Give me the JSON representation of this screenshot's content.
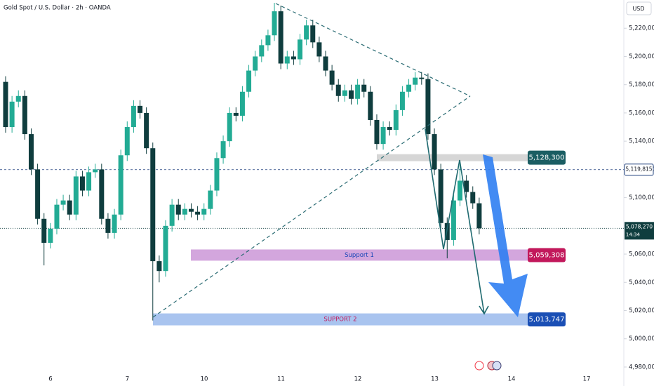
{
  "header": {
    "title": "Gold Spot / U.S. Dollar · 2h · OANDA",
    "currency": "USD"
  },
  "chart_data": {
    "type": "candlestick",
    "up_color": "#22ab94",
    "down_color": "#0f3d3e",
    "open": [
      5182000,
      5150000,
      5168000,
      5172000,
      5145000,
      5120000,
      5085000,
      5068000,
      5078000,
      5095000,
      5098000,
      5088000,
      5115000,
      5105000,
      5118000,
      5120000,
      5085000,
      5075000,
      5088000,
      5130000,
      5150000,
      5165000,
      5160000,
      5135000,
      5055000,
      5048000,
      5080000,
      5095000,
      5088000,
      5092000,
      5090000,
      5088000,
      5092000,
      5105000,
      5128000,
      5140000,
      5160000,
      5158000,
      5175000,
      5190000,
      5200000,
      5208000,
      5215000,
      5232000,
      5195000,
      5200000,
      5198000,
      5212000,
      5222000,
      5210000,
      5200000,
      5190000,
      5180000,
      5172000,
      5176000,
      5170000,
      5180000,
      5175000,
      5155000,
      5138000,
      5150000,
      5148000,
      5162000,
      5175000,
      5180000,
      5185000,
      5184000,
      5145000,
      5120000,
      5082000,
      5070000,
      5098000,
      5112000,
      5104000,
      5096000
    ],
    "high": [
      5186000,
      5172000,
      5176000,
      5176000,
      5149000,
      5124000,
      5089000,
      5082000,
      5099000,
      5102000,
      5102000,
      5119000,
      5119000,
      5122000,
      5124000,
      5124000,
      5089000,
      5092000,
      5134000,
      5154000,
      5169000,
      5169000,
      5164000,
      5139000,
      5059000,
      5084000,
      5099000,
      5099000,
      5096000,
      5096000,
      5094000,
      5096000,
      5109000,
      5132000,
      5144000,
      5164000,
      5164000,
      5179000,
      5194000,
      5204000,
      5212000,
      5219000,
      5238000,
      5236000,
      5204000,
      5204000,
      5216000,
      5226000,
      5226000,
      5214000,
      5204000,
      5194000,
      5184000,
      5180000,
      5180000,
      5184000,
      5184000,
      5179000,
      5159000,
      5154000,
      5154000,
      5166000,
      5179000,
      5184000,
      5189000,
      5189000,
      5188000,
      5149000,
      5124000,
      5086000,
      5102000,
      5126000,
      5116000,
      5108000,
      5100000
    ],
    "low": [
      5146000,
      5146000,
      5164000,
      5141000,
      5116000,
      5081000,
      5052000,
      5064000,
      5074000,
      5091000,
      5084000,
      5084000,
      5101000,
      5101000,
      5114000,
      5081000,
      5071000,
      5071000,
      5084000,
      5126000,
      5146000,
      5156000,
      5131000,
      5013000,
      5040000,
      5044000,
      5076000,
      5084000,
      5084000,
      5086000,
      5084000,
      5084000,
      5088000,
      5101000,
      5124000,
      5136000,
      5154000,
      5154000,
      5171000,
      5186000,
      5196000,
      5204000,
      5211000,
      5191000,
      5191000,
      5194000,
      5194000,
      5208000,
      5206000,
      5196000,
      5186000,
      5176000,
      5168000,
      5168000,
      5166000,
      5166000,
      5171000,
      5151000,
      5134000,
      5134000,
      5144000,
      5144000,
      5158000,
      5171000,
      5176000,
      5180000,
      5141000,
      5116000,
      5078000,
      5057000,
      5066000,
      5094000,
      5100000,
      5092000,
      5074000
    ],
    "close": [
      5150000,
      5168000,
      5172000,
      5145000,
      5120000,
      5085000,
      5068000,
      5078000,
      5095000,
      5098000,
      5088000,
      5115000,
      5105000,
      5118000,
      5120000,
      5085000,
      5075000,
      5088000,
      5130000,
      5150000,
      5165000,
      5160000,
      5135000,
      5055000,
      5048000,
      5080000,
      5095000,
      5088000,
      5092000,
      5090000,
      5088000,
      5092000,
      5105000,
      5128000,
      5140000,
      5160000,
      5158000,
      5175000,
      5190000,
      5200000,
      5208000,
      5215000,
      5232000,
      5195000,
      5200000,
      5198000,
      5212000,
      5222000,
      5210000,
      5200000,
      5190000,
      5180000,
      5172000,
      5176000,
      5170000,
      5180000,
      5175000,
      5155000,
      5138000,
      5150000,
      5148000,
      5162000,
      5175000,
      5180000,
      5185000,
      5184000,
      5145000,
      5120000,
      5082000,
      5070000,
      5098000,
      5112000,
      5104000,
      5096000,
      5078270
    ],
    "ylim": [
      4976500,
      5240000
    ],
    "yticks": [
      {
        "value": 5220000,
        "label": "5,220,000"
      },
      {
        "value": 5200000,
        "label": "5,200,000"
      },
      {
        "value": 5180000,
        "label": "5,180,000"
      },
      {
        "value": 5160000,
        "label": "5,160,000"
      },
      {
        "value": 5140000,
        "label": "5,140,000"
      },
      {
        "value": 5120000,
        "label": "5,120,000"
      },
      {
        "value": 5100000,
        "label": "5,100,000"
      },
      {
        "value": 5080000,
        "label": "5,080,000"
      },
      {
        "value": 5060000,
        "label": "5,060,000"
      },
      {
        "value": 5040000,
        "label": "5,040,000"
      },
      {
        "value": 5020000,
        "label": "5,020,000"
      },
      {
        "value": 5000000,
        "label": "5,000,000"
      },
      {
        "value": 4980000,
        "label": "4,980,000"
      }
    ],
    "x_axis_labels": [
      "6",
      "7",
      "10",
      "11",
      "12",
      "13",
      "14",
      "17"
    ],
    "levels": [
      {
        "value": 5128300,
        "label": "5,128,300"
      },
      {
        "value": 5119815,
        "label": "5,119,815"
      },
      {
        "value": 5059308,
        "label": "5,059,308",
        "zone_text": "Support 1"
      },
      {
        "value": 5013747,
        "label": "5,013,747",
        "zone_text": "SUPPORT 2"
      }
    ],
    "last_price": {
      "value": 5078270,
      "label": "5,078,270",
      "time": "14:34"
    }
  }
}
